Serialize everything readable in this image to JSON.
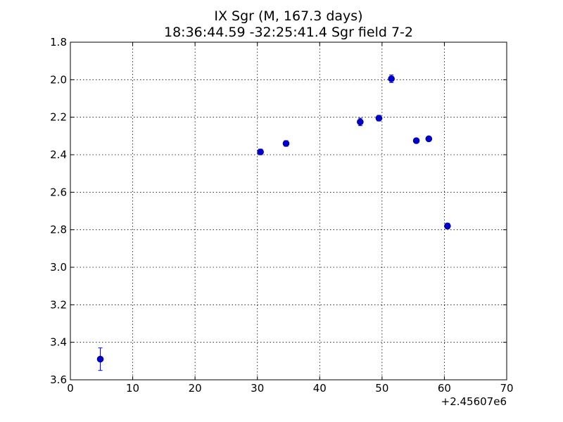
{
  "chart_data": {
    "type": "scatter",
    "title": "IX Sgr  (M, 167.3 days)",
    "subtitle": "18:36:44.59 -32:25:41.4 Sgr field 7-2",
    "xlim": [
      0,
      70
    ],
    "ylim": [
      1.8,
      3.6
    ],
    "y_inverted": true,
    "x_ticks": [
      "0",
      "10",
      "20",
      "30",
      "40",
      "50",
      "60",
      "70"
    ],
    "y_ticks": [
      "1.8",
      "2.0",
      "2.2",
      "2.4",
      "2.6",
      "2.8",
      "3.0",
      "3.2",
      "3.4",
      "3.6"
    ],
    "x_offset_label": "+2.45607e6",
    "grid": true,
    "marker_color": "#0000cc",
    "errorbar_color": "#0000ff",
    "points": [
      {
        "x": 4.8,
        "y": 3.49,
        "err": 0.06
      },
      {
        "x": 30.5,
        "y": 2.385,
        "err": 0.015
      },
      {
        "x": 34.6,
        "y": 2.34,
        "err": 0.015
      },
      {
        "x": 46.5,
        "y": 2.225,
        "err": 0.02
      },
      {
        "x": 49.5,
        "y": 2.205,
        "err": 0.015
      },
      {
        "x": 51.5,
        "y": 1.995,
        "err": 0.02
      },
      {
        "x": 55.5,
        "y": 2.325,
        "err": 0.01
      },
      {
        "x": 57.5,
        "y": 2.315,
        "err": 0.01
      },
      {
        "x": 60.5,
        "y": 2.78,
        "err": 0.015
      }
    ]
  }
}
